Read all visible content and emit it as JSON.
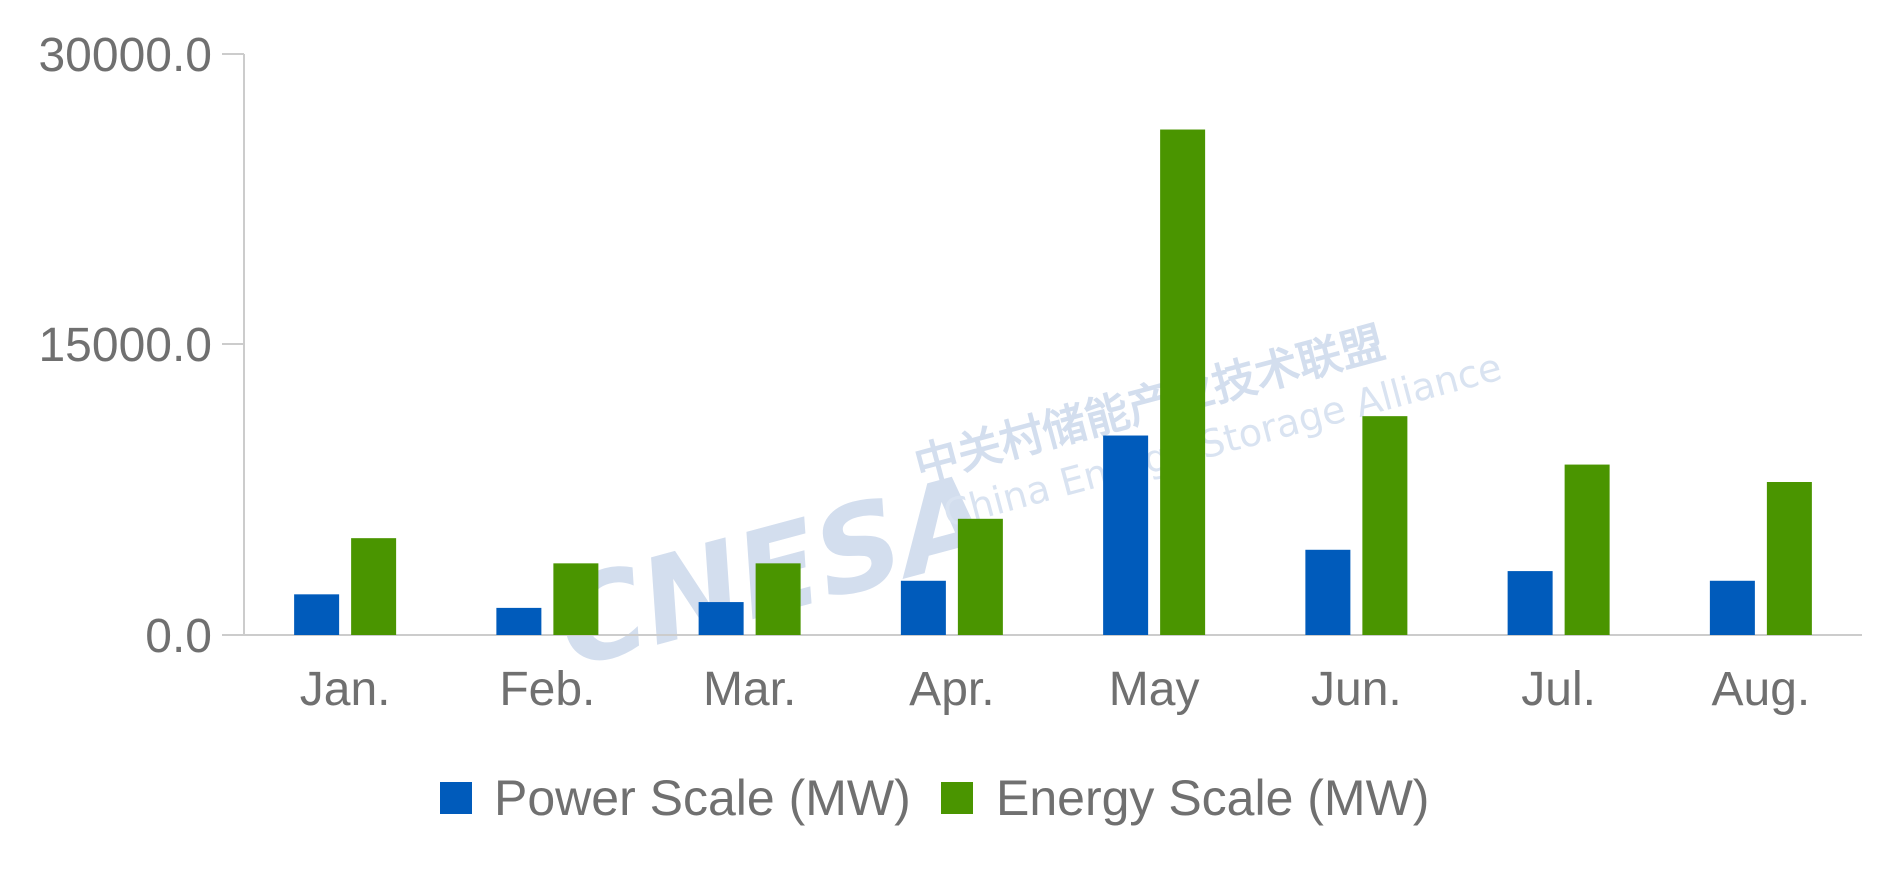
{
  "watermark": {
    "logo_text": "CNESA",
    "chinese_text": "中关村储能产业技术联盟",
    "english_text": "China Energy Storage Alliance"
  },
  "colors": {
    "power": "#005bbb",
    "energy": "#4a9500",
    "axis": "#cccccc",
    "text": "#707070"
  },
  "chart_data": {
    "type": "bar",
    "categories": [
      "Jan.",
      "Feb.",
      "Mar.",
      "Apr.",
      "May",
      "Jun.",
      "Jul.",
      "Aug."
    ],
    "series": [
      {
        "name": "Power Scale (MW)",
        "values": [
          2100,
          1400,
          1700,
          2800,
          10300,
          4400,
          3300,
          2800
        ]
      },
      {
        "name": "Energy Scale (MW)",
        "values": [
          5000,
          3700,
          3700,
          6000,
          26100,
          11300,
          8800,
          7900
        ]
      }
    ],
    "yticks": [
      "0.0",
      "15000.0",
      "30000.0"
    ],
    "ylim": [
      0,
      30000
    ],
    "grid": false,
    "legend_position": "bottom-center"
  }
}
